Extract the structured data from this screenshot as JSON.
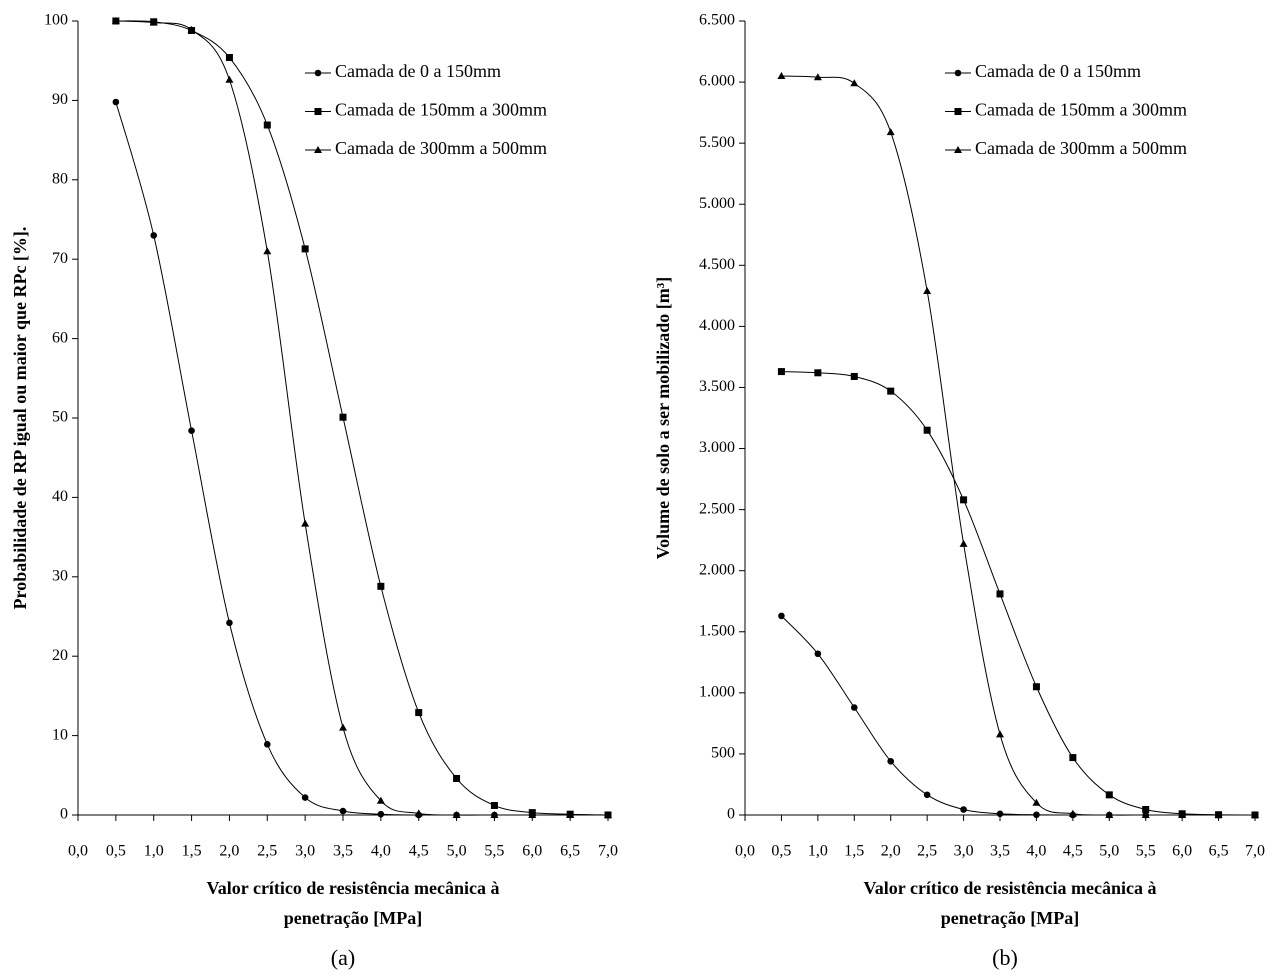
{
  "chart_data": [
    {
      "type": "line",
      "label": "(a)",
      "x_title_lines": [
        "Valor crítico de resistência mecânica à",
        "penetração [MPa]"
      ],
      "y_title": "Probabilidade de RP igual ou maior que RPc [%].",
      "x": [
        0.5,
        1.0,
        1.5,
        2.0,
        2.5,
        3.0,
        3.5,
        4.0,
        4.5,
        5.0,
        5.5,
        6.0,
        6.5,
        7.0
      ],
      "series": [
        {
          "name": "Camada de 0 a 150mm",
          "color": "#000000",
          "marker": "circle",
          "values": [
            89.8,
            73,
            48.4,
            24.2,
            8.9,
            2.2,
            0.5,
            0.1,
            0,
            0,
            0,
            0,
            0,
            0
          ]
        },
        {
          "name": "Camada de 150mm a 300mm",
          "color": "#000000",
          "marker": "square",
          "values": [
            100,
            99.9,
            98.8,
            95.4,
            86.9,
            71.3,
            50.1,
            28.8,
            12.9,
            4.6,
            1.2,
            0.3,
            0.1,
            0
          ]
        },
        {
          "name": "Camada de 300mm a 500mm",
          "color": "#000000",
          "marker": "triangle",
          "values": [
            100,
            99.8,
            98.9,
            92.6,
            71,
            36.7,
            11,
            1.8,
            0.2,
            0,
            0,
            0,
            0,
            0
          ]
        }
      ],
      "xlim": [
        0,
        7
      ],
      "ylim": [
        0,
        100
      ],
      "xticks": [
        {
          "value": 0,
          "label": "0,0"
        },
        {
          "value": 0.5,
          "label": "0,5"
        },
        {
          "value": 1,
          "label": "1,0"
        },
        {
          "value": 1.5,
          "label": "1,5"
        },
        {
          "value": 2,
          "label": "2,0"
        },
        {
          "value": 2.5,
          "label": "2,5"
        },
        {
          "value": 3,
          "label": "3,0"
        },
        {
          "value": 3.5,
          "label": "3,5"
        },
        {
          "value": 4,
          "label": "4,0"
        },
        {
          "value": 4.5,
          "label": "4,5"
        },
        {
          "value": 5,
          "label": "5,0"
        },
        {
          "value": 5.5,
          "label": "5,5"
        },
        {
          "value": 6,
          "label": "6,0"
        },
        {
          "value": 6.5,
          "label": "6,5"
        },
        {
          "value": 7,
          "label": "7,0"
        }
      ],
      "yticks": [
        0,
        10,
        20,
        30,
        40,
        50,
        60,
        70,
        80,
        90,
        100
      ],
      "grid": false
    },
    {
      "type": "line",
      "label": "(b)",
      "x_title_lines": [
        "Valor crítico de resistência mecânica à",
        "penetração [MPa]"
      ],
      "y_title": "Volume de solo a ser mobilizado [m³]",
      "x": [
        0.5,
        1.0,
        1.5,
        2.0,
        2.5,
        3.0,
        3.5,
        4.0,
        4.5,
        5.0,
        5.5,
        6.0,
        6.5,
        7.0
      ],
      "series": [
        {
          "name": "Camada de 0 a 150mm",
          "color": "#000000",
          "marker": "circle",
          "values": [
            1630,
            1320,
            880,
            440,
            165,
            45,
            10,
            2,
            0,
            0,
            0,
            0,
            0,
            0
          ]
        },
        {
          "name": "Camada de 150mm a 300mm",
          "color": "#000000",
          "marker": "square",
          "values": [
            3630,
            3620,
            3590,
            3470,
            3150,
            2580,
            1810,
            1050,
            470,
            165,
            45,
            10,
            2,
            0
          ]
        },
        {
          "name": "Camada de 300mm a 500mm",
          "color": "#000000",
          "marker": "triangle",
          "values": [
            6050,
            6040,
            5990,
            5590,
            4290,
            2220,
            660,
            100,
            10,
            0,
            0,
            0,
            0,
            0
          ]
        }
      ],
      "xlim": [
        0,
        7
      ],
      "ylim": [
        0,
        6500
      ],
      "xticks": [
        {
          "value": 0,
          "label": "0,0"
        },
        {
          "value": 0.5,
          "label": "0,5"
        },
        {
          "value": 1,
          "label": "1,0"
        },
        {
          "value": 1.5,
          "label": "1,5"
        },
        {
          "value": 2,
          "label": "2,0"
        },
        {
          "value": 2.5,
          "label": "2,5"
        },
        {
          "value": 3,
          "label": "3,0"
        },
        {
          "value": 3.5,
          "label": "3,5"
        },
        {
          "value": 4,
          "label": "4,0"
        },
        {
          "value": 4.5,
          "label": "4,5"
        },
        {
          "value": 5,
          "label": "5,0"
        },
        {
          "value": 5.5,
          "label": "5,5"
        },
        {
          "value": 6,
          "label": "6,0"
        },
        {
          "value": 6.5,
          "label": "6,5"
        },
        {
          "value": 7,
          "label": "7,0"
        }
      ],
      "yticks": [
        0,
        500,
        {
          "value": 1000,
          "label": "1.000"
        },
        {
          "value": 1500,
          "label": "1.500"
        },
        {
          "value": 2000,
          "label": "2.000"
        },
        {
          "value": 2500,
          "label": "2.500"
        },
        {
          "value": 3000,
          "label": "3.000"
        },
        {
          "value": 3500,
          "label": "3.500"
        },
        {
          "value": 4000,
          "label": "4.000"
        },
        {
          "value": 4500,
          "label": "4.500"
        },
        {
          "value": 5000,
          "label": "5.000"
        },
        {
          "value": 5500,
          "label": "5.500"
        },
        {
          "value": 6000,
          "label": "6.000"
        },
        {
          "value": 6500,
          "label": "6.500"
        }
      ],
      "grid": false
    }
  ]
}
